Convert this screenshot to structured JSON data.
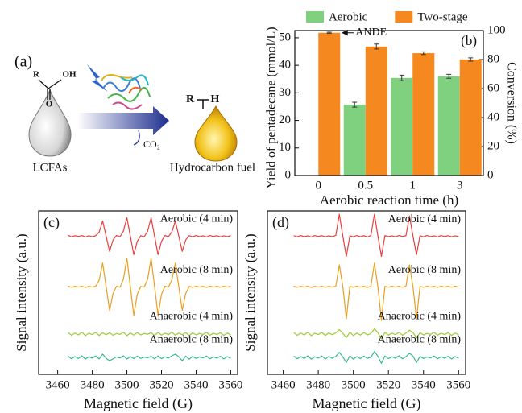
{
  "diagram": {
    "panel_label": "(a)",
    "reactant_r": "R",
    "reactant_oh": "OH",
    "reactant_o": "O",
    "reactant_name": "LCFAs",
    "byproduct": "CO₂",
    "product_r": "R",
    "product_h": "H",
    "product_name": "Hydrocarbon fuel"
  },
  "chart_data": [
    {
      "type": "bar",
      "panel_label": "(b)",
      "x_label": "Aerobic reaction time (h)",
      "y_label": "Yield of pentadecane (mmol/L)",
      "y2_label": "Conversion (%)",
      "categories": [
        "0",
        "0.5",
        "1",
        "3"
      ],
      "series": [
        {
          "name": "Aerobic",
          "color": "#7fd07f",
          "values": [
            null,
            25.7,
            35.4,
            36.0
          ],
          "errors": [
            null,
            0.9,
            1.0,
            0.7
          ]
        },
        {
          "name": "Two-stage",
          "color": "#f5891f",
          "values": [
            51.8,
            46.8,
            44.4,
            42.1
          ],
          "errors": [
            0.2,
            0.9,
            0.5,
            0.6
          ]
        }
      ],
      "annotation": "ANDE",
      "ylim": [
        0,
        52.6
      ],
      "yticks": [
        0,
        10,
        20,
        30,
        40,
        50
      ],
      "y2lim": [
        0,
        100
      ],
      "y2ticks": [
        0,
        20,
        40,
        60,
        80,
        100
      ],
      "legend": "top",
      "grid": false
    },
    {
      "type": "line",
      "panel_label": "(c)",
      "x_label": "Magnetic field (G)",
      "y_label": "Signal intensity (a.u.)",
      "xlim": [
        3449,
        3564
      ],
      "xticks": [
        3460,
        3480,
        3500,
        3520,
        3540,
        3560
      ],
      "ylim": [
        -0.2,
        9.5
      ],
      "x": [
        3466,
        3468,
        3470,
        3472,
        3474,
        3476,
        3478,
        3480,
        3482,
        3484,
        3486,
        3488,
        3490,
        3492,
        3494,
        3496,
        3498,
        3500,
        3502,
        3504,
        3506,
        3508,
        3510,
        3512,
        3514,
        3516,
        3518,
        3520,
        3522,
        3524,
        3526,
        3528,
        3530,
        3532,
        3534,
        3536,
        3538,
        3540,
        3542,
        3544,
        3546,
        3548,
        3550,
        3552,
        3554,
        3556,
        3558,
        3560
      ],
      "series": [
        {
          "name": "Aerobic (4 min)",
          "color": "#e8403f",
          "values": [
            8.05,
            7.96,
            8.03,
            7.98,
            8.04,
            7.95,
            8.02,
            7.97,
            8.03,
            8.25,
            8.9,
            8.0,
            7.1,
            7.78,
            8.04,
            7.97,
            8.3,
            9.1,
            8.0,
            6.9,
            7.7,
            8.03,
            7.96,
            8.3,
            9.1,
            8.0,
            6.9,
            7.7,
            8.04,
            7.97,
            8.25,
            8.9,
            8.0,
            7.1,
            7.78,
            8.03,
            7.96,
            8.04,
            7.97,
            8.02,
            7.95,
            8.04,
            7.98,
            8.03,
            7.96,
            8.02,
            7.97,
            8.03
          ]
        },
        {
          "name": "Aerobic (8 min)",
          "color": "#e8a020",
          "values": [
            5.03,
            4.97,
            5.02,
            4.98,
            5.03,
            4.96,
            5.02,
            4.98,
            5.03,
            5.4,
            6.4,
            5.0,
            3.6,
            4.6,
            5.03,
            4.97,
            5.45,
            6.7,
            5.0,
            3.3,
            4.55,
            5.02,
            4.98,
            5.45,
            6.7,
            5.0,
            3.3,
            4.55,
            5.03,
            4.97,
            5.4,
            6.4,
            5.0,
            3.6,
            4.6,
            5.02,
            4.97,
            5.03,
            4.98,
            5.02,
            4.96,
            5.03,
            4.98,
            5.02,
            4.97,
            5.03,
            4.98,
            5.02
          ]
        },
        {
          "name": "Anaerobic (4 min)",
          "color": "#9acd32",
          "values": [
            2.28,
            2.12,
            2.25,
            2.14,
            2.3,
            2.1,
            2.24,
            2.16,
            2.29,
            2.11,
            2.26,
            2.15,
            2.27,
            2.12,
            2.23,
            2.17,
            2.3,
            2.1,
            2.25,
            2.13,
            2.28,
            2.14,
            2.22,
            2.18,
            2.27,
            2.11,
            2.29,
            2.13,
            2.24,
            2.16,
            2.3,
            2.12,
            2.25,
            2.15,
            2.28,
            2.1,
            2.26,
            2.14,
            2.23,
            2.17,
            2.29,
            2.12,
            2.24,
            2.16,
            2.27,
            2.11,
            2.25,
            2.15
          ]
        },
        {
          "name": "Anaerobic (8 min)",
          "color": "#3cb98a",
          "values": [
            0.88,
            0.72,
            0.85,
            0.74,
            0.9,
            0.7,
            0.84,
            0.76,
            0.89,
            0.71,
            1.0,
            0.75,
            0.6,
            0.72,
            0.83,
            0.77,
            0.9,
            0.7,
            0.85,
            0.73,
            0.88,
            0.74,
            0.82,
            0.78,
            0.87,
            0.71,
            0.89,
            0.73,
            0.84,
            0.76,
            0.9,
            1.0,
            0.85,
            0.6,
            0.88,
            0.7,
            0.86,
            0.74,
            0.83,
            0.77,
            0.89,
            0.72,
            0.84,
            0.76,
            0.87,
            0.71,
            0.85,
            0.75
          ]
        }
      ]
    },
    {
      "type": "line",
      "panel_label": "(d)",
      "x_label": "Magnetic field (G)",
      "y_label": "Signal intensity (a.u.)",
      "xlim": [
        3451,
        3564
      ],
      "xticks": [
        3460,
        3480,
        3500,
        3520,
        3540,
        3560
      ],
      "ylim": [
        -0.2,
        9.5
      ],
      "x": [
        3466,
        3468,
        3470,
        3472,
        3474,
        3476,
        3478,
        3480,
        3482,
        3484,
        3486,
        3488,
        3490,
        3492,
        3494,
        3496,
        3498,
        3500,
        3502,
        3504,
        3506,
        3508,
        3510,
        3512,
        3514,
        3516,
        3518,
        3520,
        3522,
        3524,
        3526,
        3528,
        3530,
        3532,
        3534,
        3536,
        3538,
        3540,
        3542,
        3544,
        3546,
        3548,
        3550,
        3552,
        3554,
        3556,
        3558,
        3560
      ],
      "series": [
        {
          "name": "Aerobic (4 min)",
          "color": "#e8403f",
          "values": [
            8.03,
            7.96,
            8.04,
            7.97,
            8.02,
            7.95,
            8.04,
            7.98,
            8.03,
            7.96,
            8.02,
            7.97,
            8.05,
            9.3,
            8.0,
            6.8,
            8.02,
            7.96,
            8.04,
            7.97,
            8.03,
            7.95,
            8.04,
            9.3,
            8.0,
            6.8,
            8.03,
            7.97,
            8.02,
            7.96,
            8.04,
            7.98,
            8.03,
            9.2,
            8.0,
            6.9,
            8.03,
            7.96,
            8.04,
            7.97,
            8.02,
            7.95,
            8.04,
            7.98,
            8.03,
            7.96,
            8.02,
            7.97
          ]
        },
        {
          "name": "Aerobic (8 min)",
          "color": "#e8a020",
          "values": [
            5.03,
            4.97,
            5.02,
            4.98,
            5.03,
            4.96,
            5.02,
            4.98,
            5.03,
            4.97,
            5.02,
            4.98,
            5.03,
            6.3,
            5.0,
            3.1,
            5.02,
            4.97,
            5.03,
            4.98,
            5.02,
            4.96,
            5.03,
            6.4,
            5.0,
            3.0,
            5.02,
            4.97,
            5.03,
            4.98,
            5.02,
            4.97,
            5.03,
            6.3,
            5.0,
            3.1,
            5.02,
            4.97,
            5.03,
            4.98,
            5.02,
            4.96,
            5.03,
            4.98,
            5.02,
            4.97,
            5.03,
            4.98
          ]
        },
        {
          "name": "Anaerobic (4 min)",
          "color": "#9acd32",
          "values": [
            2.28,
            2.12,
            2.25,
            2.14,
            2.3,
            2.1,
            2.24,
            2.16,
            2.29,
            2.11,
            2.26,
            2.15,
            2.27,
            2.45,
            2.23,
            1.98,
            2.3,
            2.1,
            2.25,
            2.13,
            2.28,
            2.14,
            2.22,
            2.5,
            2.27,
            1.9,
            2.29,
            2.13,
            2.24,
            2.16,
            2.3,
            2.12,
            2.25,
            2.42,
            2.28,
            1.98,
            2.26,
            2.14,
            2.23,
            2.17,
            2.29,
            2.12,
            2.24,
            2.16,
            2.27,
            2.11,
            2.25,
            2.15
          ]
        },
        {
          "name": "Anaerobic (8 min)",
          "color": "#3cb98a",
          "values": [
            0.88,
            0.72,
            0.85,
            0.74,
            0.9,
            0.7,
            0.84,
            0.76,
            0.89,
            0.71,
            0.86,
            0.75,
            0.87,
            1.1,
            0.83,
            0.5,
            0.9,
            0.7,
            0.85,
            0.73,
            0.88,
            0.74,
            0.82,
            1.15,
            0.87,
            0.45,
            0.89,
            0.73,
            0.84,
            0.76,
            0.9,
            0.72,
            0.85,
            1.05,
            0.88,
            0.5,
            0.86,
            0.74,
            0.83,
            0.77,
            0.89,
            0.72,
            0.84,
            0.76,
            0.87,
            0.71,
            0.85,
            0.75
          ]
        }
      ]
    }
  ]
}
